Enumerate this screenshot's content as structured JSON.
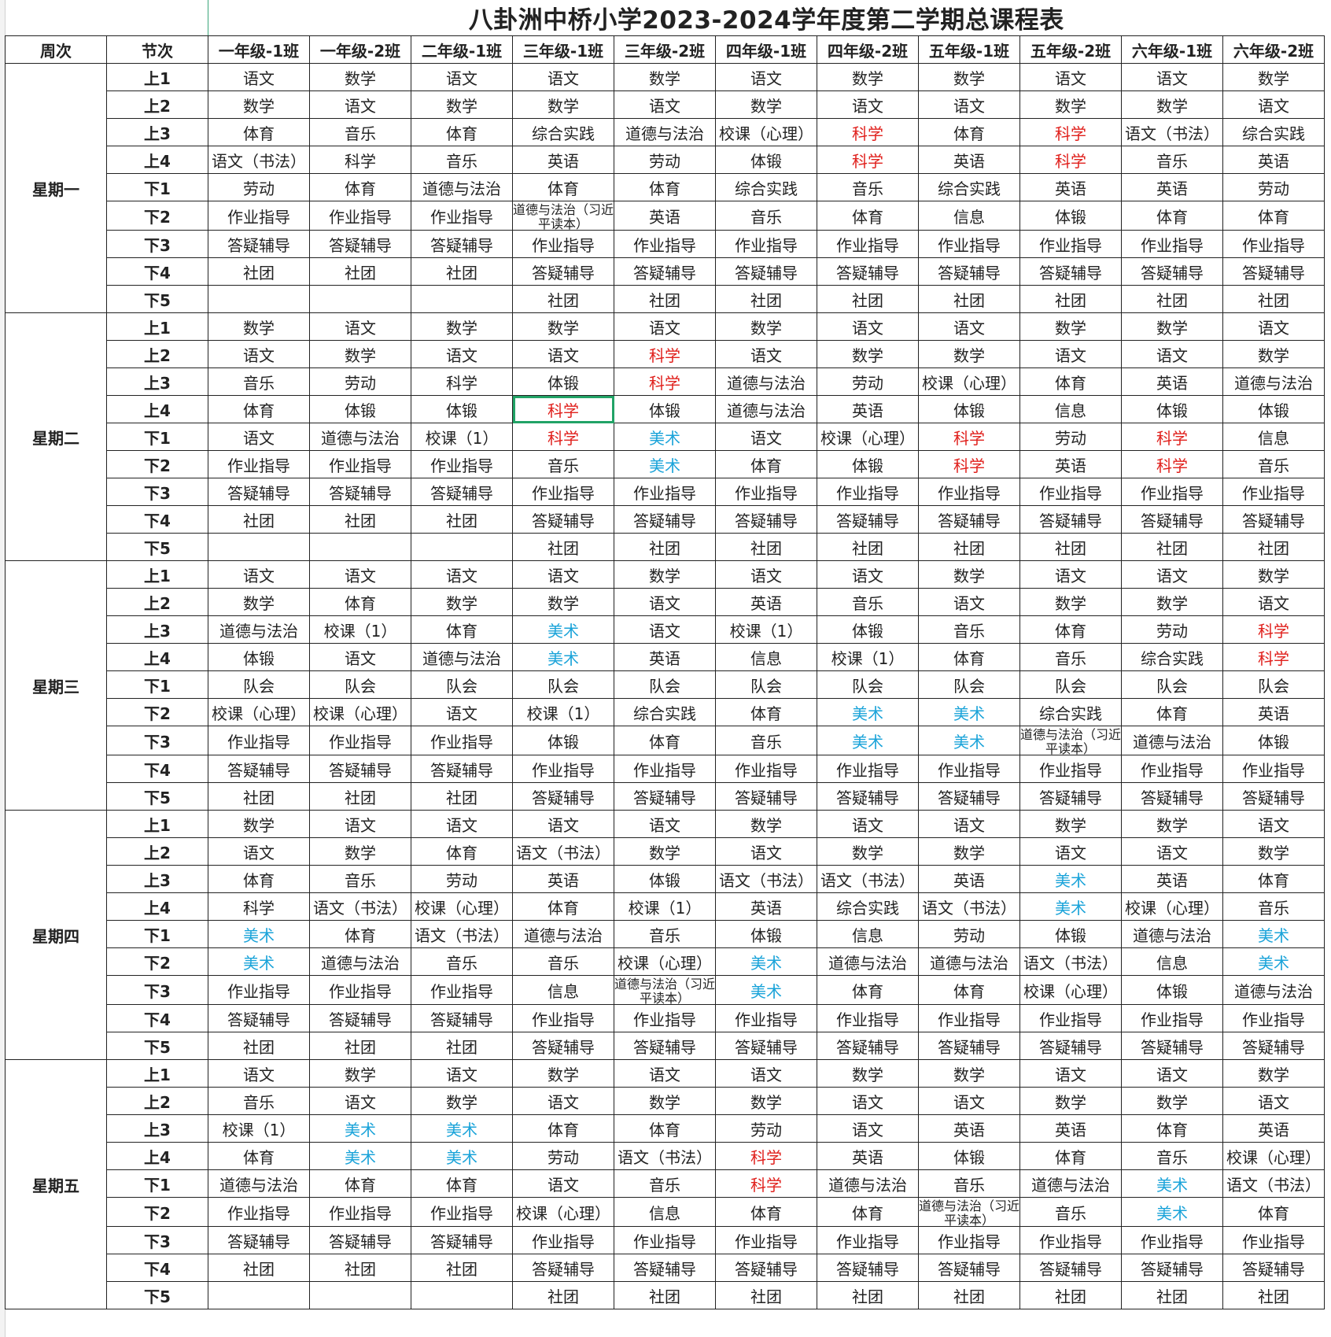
{
  "title": "八卦洲中桥小学2023-2024学年度第二学期总课程表",
  "headers": [
    "周次",
    "节次",
    "一年级-1班",
    "一年级-2班",
    "二年级-1班",
    "三年级-1班",
    "三年级-2班",
    "四年级-1班",
    "四年级-2班",
    "五年级-1班",
    "五年级-2班",
    "六年级-1班",
    "六年级-2班"
  ],
  "colors": {
    "red": "#e0201c",
    "blue": "#1aa3d9",
    "selection": "#21a366"
  },
  "selected_cell": {
    "day": "星期二",
    "period": "上4",
    "class": "三年级-1班"
  },
  "days": [
    {
      "name": "星期一",
      "rows": [
        {
          "period": "上1",
          "cells": [
            "语文",
            "数学",
            "语文",
            "语文",
            "数学",
            "语文",
            "数学",
            "数学",
            "语文",
            "语文",
            "数学"
          ]
        },
        {
          "period": "上2",
          "cells": [
            "数学",
            "语文",
            "数学",
            "数学",
            "语文",
            "数学",
            "语文",
            "语文",
            "数学",
            "数学",
            "语文"
          ]
        },
        {
          "period": "上3",
          "cells": [
            "体育",
            "音乐",
            "体育",
            "综合实践",
            "道德与法治",
            "校课（心理）",
            "科学",
            "体育",
            "科学",
            "语文（书法）",
            "综合实践"
          ],
          "red": [
            6,
            8
          ]
        },
        {
          "period": "上4",
          "cells": [
            "语文（书法）",
            "科学",
            "音乐",
            "英语",
            "劳动",
            "体锻",
            "科学",
            "英语",
            "科学",
            "音乐",
            "英语"
          ],
          "red": [
            6,
            8
          ]
        },
        {
          "period": "下1",
          "cells": [
            "劳动",
            "体育",
            "道德与法治",
            "体育",
            "体育",
            "综合实践",
            "音乐",
            "综合实践",
            "英语",
            "英语",
            "劳动"
          ]
        },
        {
          "period": "下2",
          "cells": [
            "作业指导",
            "作业指导",
            "作业指导",
            "道德与法治（习近平读本）",
            "英语",
            "音乐",
            "体育",
            "信息",
            "体锻",
            "体育",
            "体育"
          ]
        },
        {
          "period": "下3",
          "cells": [
            "答疑辅导",
            "答疑辅导",
            "答疑辅导",
            "作业指导",
            "作业指导",
            "作业指导",
            "作业指导",
            "作业指导",
            "作业指导",
            "作业指导",
            "作业指导"
          ]
        },
        {
          "period": "下4",
          "cells": [
            "社团",
            "社团",
            "社团",
            "答疑辅导",
            "答疑辅导",
            "答疑辅导",
            "答疑辅导",
            "答疑辅导",
            "答疑辅导",
            "答疑辅导",
            "答疑辅导"
          ]
        },
        {
          "period": "下5",
          "cells": [
            "",
            "",
            "",
            "社团",
            "社团",
            "社团",
            "社团",
            "社团",
            "社团",
            "社团",
            "社团"
          ]
        }
      ]
    },
    {
      "name": "星期二",
      "rows": [
        {
          "period": "上1",
          "cells": [
            "数学",
            "语文",
            "数学",
            "数学",
            "语文",
            "数学",
            "语文",
            "语文",
            "数学",
            "数学",
            "语文"
          ]
        },
        {
          "period": "上2",
          "cells": [
            "语文",
            "数学",
            "语文",
            "语文",
            "科学",
            "语文",
            "数学",
            "数学",
            "语文",
            "语文",
            "数学"
          ],
          "red": [
            4
          ]
        },
        {
          "period": "上3",
          "cells": [
            "音乐",
            "劳动",
            "科学",
            "体锻",
            "科学",
            "道德与法治",
            "劳动",
            "校课（心理）",
            "体育",
            "英语",
            "道德与法治"
          ],
          "red": [
            4
          ]
        },
        {
          "period": "上4",
          "cells": [
            "体育",
            "体锻",
            "体锻",
            "科学",
            "体锻",
            "道德与法治",
            "英语",
            "体锻",
            "信息",
            "体锻",
            "体锻"
          ],
          "red": [
            3
          ]
        },
        {
          "period": "下1",
          "cells": [
            "语文",
            "道德与法治",
            "校课（1）",
            "科学",
            "美术",
            "语文",
            "校课（心理）",
            "科学",
            "劳动",
            "科学",
            "信息"
          ],
          "red": [
            3,
            7,
            9
          ],
          "blue": [
            4
          ]
        },
        {
          "period": "下2",
          "cells": [
            "作业指导",
            "作业指导",
            "作业指导",
            "音乐",
            "美术",
            "体育",
            "体锻",
            "科学",
            "英语",
            "科学",
            "音乐"
          ],
          "red": [
            7,
            9
          ],
          "blue": [
            4
          ]
        },
        {
          "period": "下3",
          "cells": [
            "答疑辅导",
            "答疑辅导",
            "答疑辅导",
            "作业指导",
            "作业指导",
            "作业指导",
            "作业指导",
            "作业指导",
            "作业指导",
            "作业指导",
            "作业指导"
          ]
        },
        {
          "period": "下4",
          "cells": [
            "社团",
            "社团",
            "社团",
            "答疑辅导",
            "答疑辅导",
            "答疑辅导",
            "答疑辅导",
            "答疑辅导",
            "答疑辅导",
            "答疑辅导",
            "答疑辅导"
          ]
        },
        {
          "period": "下5",
          "cells": [
            "",
            "",
            "",
            "社团",
            "社团",
            "社团",
            "社团",
            "社团",
            "社团",
            "社团",
            "社团"
          ]
        }
      ]
    },
    {
      "name": "星期三",
      "rows": [
        {
          "period": "上1",
          "cells": [
            "语文",
            "语文",
            "语文",
            "语文",
            "数学",
            "语文",
            "语文",
            "数学",
            "语文",
            "语文",
            "数学"
          ]
        },
        {
          "period": "上2",
          "cells": [
            "数学",
            "体育",
            "数学",
            "数学",
            "语文",
            "英语",
            "音乐",
            "语文",
            "数学",
            "数学",
            "语文"
          ]
        },
        {
          "period": "上3",
          "cells": [
            "道德与法治",
            "校课（1）",
            "体育",
            "美术",
            "语文",
            "校课（1）",
            "体锻",
            "音乐",
            "体育",
            "劳动",
            "科学"
          ],
          "blue": [
            3
          ],
          "red": [
            10
          ]
        },
        {
          "period": "上4",
          "cells": [
            "体锻",
            "语文",
            "道德与法治",
            "美术",
            "英语",
            "信息",
            "校课（1）",
            "体育",
            "音乐",
            "综合实践",
            "科学"
          ],
          "blue": [
            3
          ],
          "red": [
            10
          ]
        },
        {
          "period": "下1",
          "cells": [
            "队会",
            "队会",
            "队会",
            "队会",
            "队会",
            "队会",
            "队会",
            "队会",
            "队会",
            "队会",
            "队会"
          ]
        },
        {
          "period": "下2",
          "cells": [
            "校课（心理）",
            "校课（心理）",
            "语文",
            "校课（1）",
            "综合实践",
            "体育",
            "美术",
            "美术",
            "综合实践",
            "体育",
            "英语"
          ],
          "blue": [
            6,
            7
          ]
        },
        {
          "period": "下3",
          "cells": [
            "作业指导",
            "作业指导",
            "作业指导",
            "体锻",
            "体育",
            "音乐",
            "美术",
            "美术",
            "道德与法治（习近平读本）",
            "道德与法治",
            "体锻"
          ],
          "blue": [
            6,
            7
          ]
        },
        {
          "period": "下4",
          "cells": [
            "答疑辅导",
            "答疑辅导",
            "答疑辅导",
            "作业指导",
            "作业指导",
            "作业指导",
            "作业指导",
            "作业指导",
            "作业指导",
            "作业指导",
            "作业指导"
          ]
        },
        {
          "period": "下5",
          "cells": [
            "社团",
            "社团",
            "社团",
            "答疑辅导",
            "答疑辅导",
            "答疑辅导",
            "答疑辅导",
            "答疑辅导",
            "答疑辅导",
            "答疑辅导",
            "答疑辅导"
          ]
        }
      ]
    },
    {
      "name": "星期四",
      "rows": [
        {
          "period": "上1",
          "cells": [
            "数学",
            "语文",
            "语文",
            "语文",
            "语文",
            "数学",
            "语文",
            "语文",
            "数学",
            "数学",
            "语文"
          ]
        },
        {
          "period": "上2",
          "cells": [
            "语文",
            "数学",
            "体育",
            "语文（书法）",
            "数学",
            "语文",
            "数学",
            "数学",
            "语文",
            "语文",
            "数学"
          ]
        },
        {
          "period": "上3",
          "cells": [
            "体育",
            "音乐",
            "劳动",
            "英语",
            "体锻",
            "语文（书法）",
            "语文（书法）",
            "英语",
            "美术",
            "英语",
            "体育"
          ],
          "blue": [
            8
          ]
        },
        {
          "period": "上4",
          "cells": [
            "科学",
            "语文（书法）",
            "校课（心理）",
            "体育",
            "校课（1）",
            "英语",
            "综合实践",
            "语文（书法）",
            "美术",
            "校课（心理）",
            "音乐"
          ],
          "blue": [
            8
          ]
        },
        {
          "period": "下1",
          "cells": [
            "美术",
            "体育",
            "语文（书法）",
            "道德与法治",
            "音乐",
            "体锻",
            "信息",
            "劳动",
            "体锻",
            "道德与法治",
            "美术"
          ],
          "blue": [
            0,
            10
          ]
        },
        {
          "period": "下2",
          "cells": [
            "美术",
            "道德与法治",
            "音乐",
            "音乐",
            "校课（心理）",
            "美术",
            "道德与法治",
            "道德与法治",
            "语文（书法）",
            "信息",
            "美术"
          ],
          "blue": [
            0,
            5,
            10
          ]
        },
        {
          "period": "下3",
          "cells": [
            "作业指导",
            "作业指导",
            "作业指导",
            "信息",
            "道德与法治（习近平读本）",
            "美术",
            "体育",
            "体育",
            "校课（心理）",
            "体锻",
            "道德与法治"
          ],
          "blue": [
            5
          ]
        },
        {
          "period": "下4",
          "cells": [
            "答疑辅导",
            "答疑辅导",
            "答疑辅导",
            "作业指导",
            "作业指导",
            "作业指导",
            "作业指导",
            "作业指导",
            "作业指导",
            "作业指导",
            "作业指导"
          ]
        },
        {
          "period": "下5",
          "cells": [
            "社团",
            "社团",
            "社团",
            "答疑辅导",
            "答疑辅导",
            "答疑辅导",
            "答疑辅导",
            "答疑辅导",
            "答疑辅导",
            "答疑辅导",
            "答疑辅导"
          ]
        }
      ]
    },
    {
      "name": "星期五",
      "rows": [
        {
          "period": "上1",
          "cells": [
            "语文",
            "数学",
            "语文",
            "数学",
            "语文",
            "语文",
            "数学",
            "数学",
            "语文",
            "语文",
            "数学"
          ]
        },
        {
          "period": "上2",
          "cells": [
            "音乐",
            "语文",
            "数学",
            "语文",
            "数学",
            "数学",
            "语文",
            "语文",
            "数学",
            "数学",
            "语文"
          ]
        },
        {
          "period": "上3",
          "cells": [
            "校课（1）",
            "美术",
            "美术",
            "体育",
            "体育",
            "劳动",
            "语文",
            "英语",
            "英语",
            "体育",
            "英语"
          ],
          "blue": [
            1,
            2
          ]
        },
        {
          "period": "上4",
          "cells": [
            "体育",
            "美术",
            "美术",
            "劳动",
            "语文（书法）",
            "科学",
            "英语",
            "体锻",
            "体育",
            "音乐",
            "校课（心理）"
          ],
          "blue": [
            1,
            2
          ],
          "red": [
            5
          ]
        },
        {
          "period": "下1",
          "cells": [
            "道德与法治",
            "体育",
            "体育",
            "语文",
            "音乐",
            "科学",
            "道德与法治",
            "音乐",
            "道德与法治",
            "美术",
            "语文（书法）"
          ],
          "red": [
            5
          ],
          "blue": [
            9
          ]
        },
        {
          "period": "下2",
          "cells": [
            "作业指导",
            "作业指导",
            "作业指导",
            "校课（心理）",
            "信息",
            "体育",
            "体育",
            "道德与法治（习近平读本）",
            "音乐",
            "美术",
            "体育"
          ],
          "blue": [
            9
          ]
        },
        {
          "period": "下3",
          "cells": [
            "答疑辅导",
            "答疑辅导",
            "答疑辅导",
            "作业指导",
            "作业指导",
            "作业指导",
            "作业指导",
            "作业指导",
            "作业指导",
            "作业指导",
            "作业指导"
          ]
        },
        {
          "period": "下4",
          "cells": [
            "社团",
            "社团",
            "社团",
            "答疑辅导",
            "答疑辅导",
            "答疑辅导",
            "答疑辅导",
            "答疑辅导",
            "答疑辅导",
            "答疑辅导",
            "答疑辅导"
          ]
        },
        {
          "period": "下5",
          "cells": [
            "",
            "",
            "",
            "社团",
            "社团",
            "社团",
            "社团",
            "社团",
            "社团",
            "社团",
            "社团"
          ]
        }
      ]
    }
  ]
}
